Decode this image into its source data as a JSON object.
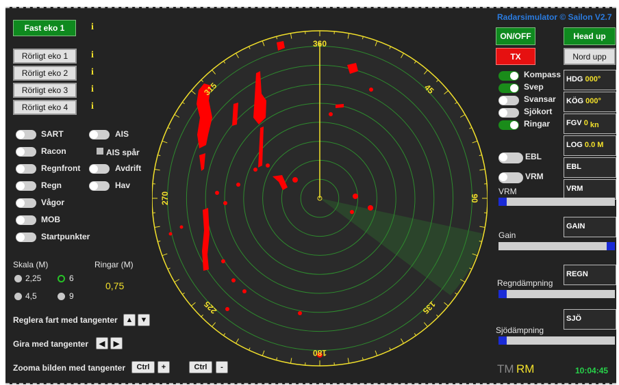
{
  "title": "Radarsimulator © Sailon V2.7",
  "echo_buttons": {
    "fast": "Fast eko 1",
    "moving": [
      "Rörligt eko 1",
      "Rörligt eko 2",
      "Rörligt eko 3",
      "Rörligt eko 4"
    ],
    "info_symbol": "i"
  },
  "left_toggles": {
    "col1": [
      {
        "label": "SART",
        "on": false
      },
      {
        "label": "Racon",
        "on": false
      },
      {
        "label": "Regnfront",
        "on": false
      },
      {
        "label": "Regn",
        "on": false
      },
      {
        "label": "Vågor",
        "on": false
      },
      {
        "label": "MOB",
        "on": false
      },
      {
        "label": "Startpunkter",
        "on": false
      }
    ],
    "col2": [
      {
        "label": "AIS",
        "on": false
      },
      {
        "label": "Avdrift",
        "on": false
      },
      {
        "label": "Hav",
        "on": false
      }
    ],
    "ais_trail": {
      "label": "AIS spår",
      "checked": false
    }
  },
  "scale": {
    "label": "Skala (M)",
    "options": [
      "2,25",
      "6",
      "4,5",
      "9"
    ],
    "selected": "6"
  },
  "rings": {
    "label": "Ringar (M)",
    "value": "0,75"
  },
  "keys": {
    "speed_label": "Reglera fart med tangenter",
    "up": "▲",
    "down": "▼",
    "turn_label": "Gira med tangenter",
    "left": "◀",
    "right": "▶",
    "zoom_label": "Zooma bilden med tangenter",
    "ctrl": "Ctrl",
    "plus": "+",
    "minus": "-"
  },
  "radar": {
    "bearings": [
      "360",
      "45",
      "90",
      "135",
      "180",
      "225",
      "270",
      "315"
    ],
    "ring_count": 8,
    "accent": "#f3e12b",
    "echo_color": "#ff0000"
  },
  "right": {
    "onoff": "ON/OFF",
    "tx": "TX",
    "head_up": "Head up",
    "north_up": "Nord upp",
    "toggles": [
      {
        "label": "Kompass",
        "on": true
      },
      {
        "label": "Svep",
        "on": true
      },
      {
        "label": "Svansar",
        "on": false
      },
      {
        "label": "Sjökort",
        "on": false
      },
      {
        "label": "Ringar",
        "on": true
      }
    ],
    "ebl_toggle": "EBL",
    "vrm_toggle": "VRM",
    "hdg_label": "HDG",
    "hdg_value": "000°",
    "kog_label": "KÖG",
    "kog_value": "000°",
    "fgv_label": "FGV",
    "fgv_value": "0",
    "fgv_unit": "kn",
    "log_label": "LOG",
    "log_value": "0.0 M",
    "ebl_box": "EBL",
    "vrm_box": "VRM",
    "vrm_slider_label": "VRM",
    "vrm_level": 0,
    "gain_label": "Gain",
    "gain_button": "GAIN",
    "gain_level": 1,
    "rain_label": "Regndämpning",
    "rain_button": "REGN",
    "rain_level": 0,
    "sea_label": "Sjödämpning",
    "sea_button": "SJÖ",
    "sea_level": 0,
    "tm": "TM",
    "rm": "RM",
    "clock": "10:04:45"
  }
}
